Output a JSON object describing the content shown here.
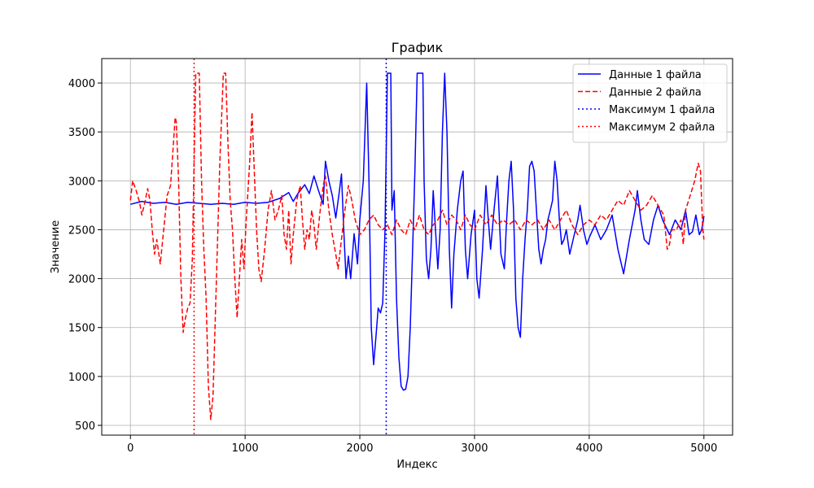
{
  "chart_data": {
    "type": "line",
    "title": "График",
    "xlabel": "Индекс",
    "ylabel": "Значение",
    "xlim": [
      -250,
      5250
    ],
    "ylim": [
      400,
      4250
    ],
    "xticks": [
      0,
      1000,
      2000,
      3000,
      4000,
      5000
    ],
    "yticks": [
      500,
      1000,
      1500,
      2000,
      2500,
      3000,
      3500,
      4000
    ],
    "grid": true,
    "legend_position": "top-right",
    "series": [
      {
        "name": "Данные 1 файла",
        "color": "#0000ff",
        "style": "solid",
        "points": [
          [
            0,
            2760
          ],
          [
            100,
            2790
          ],
          [
            200,
            2770
          ],
          [
            300,
            2780
          ],
          [
            400,
            2760
          ],
          [
            500,
            2780
          ],
          [
            600,
            2770
          ],
          [
            700,
            2760
          ],
          [
            800,
            2770
          ],
          [
            900,
            2760
          ],
          [
            1000,
            2780
          ],
          [
            1100,
            2770
          ],
          [
            1200,
            2780
          ],
          [
            1300,
            2820
          ],
          [
            1380,
            2880
          ],
          [
            1420,
            2790
          ],
          [
            1460,
            2870
          ],
          [
            1520,
            2960
          ],
          [
            1560,
            2870
          ],
          [
            1600,
            3050
          ],
          [
            1640,
            2900
          ],
          [
            1680,
            2760
          ],
          [
            1700,
            3200
          ],
          [
            1730,
            3000
          ],
          [
            1760,
            2850
          ],
          [
            1790,
            2620
          ],
          [
            1820,
            2880
          ],
          [
            1840,
            3070
          ],
          [
            1860,
            2500
          ],
          [
            1880,
            2000
          ],
          [
            1900,
            2230
          ],
          [
            1920,
            2000
          ],
          [
            1950,
            2460
          ],
          [
            1980,
            2150
          ],
          [
            2000,
            2600
          ],
          [
            2030,
            3000
          ],
          [
            2060,
            4000
          ],
          [
            2080,
            3000
          ],
          [
            2100,
            1500
          ],
          [
            2120,
            1120
          ],
          [
            2140,
            1400
          ],
          [
            2160,
            1700
          ],
          [
            2180,
            1650
          ],
          [
            2200,
            1750
          ],
          [
            2220,
            2500
          ],
          [
            2240,
            4100
          ],
          [
            2270,
            4100
          ],
          [
            2280,
            2700
          ],
          [
            2300,
            2900
          ],
          [
            2320,
            1800
          ],
          [
            2340,
            1200
          ],
          [
            2360,
            900
          ],
          [
            2380,
            860
          ],
          [
            2400,
            870
          ],
          [
            2420,
            1000
          ],
          [
            2440,
            1500
          ],
          [
            2460,
            2300
          ],
          [
            2480,
            3100
          ],
          [
            2500,
            4100
          ],
          [
            2550,
            4100
          ],
          [
            2560,
            3000
          ],
          [
            2580,
            2200
          ],
          [
            2600,
            2000
          ],
          [
            2620,
            2300
          ],
          [
            2640,
            2900
          ],
          [
            2660,
            2500
          ],
          [
            2680,
            2100
          ],
          [
            2700,
            2500
          ],
          [
            2720,
            3500
          ],
          [
            2740,
            4100
          ],
          [
            2760,
            3500
          ],
          [
            2780,
            2300
          ],
          [
            2800,
            1700
          ],
          [
            2820,
            2250
          ],
          [
            2850,
            2700
          ],
          [
            2880,
            3000
          ],
          [
            2900,
            3100
          ],
          [
            2920,
            2300
          ],
          [
            2940,
            2000
          ],
          [
            2970,
            2450
          ],
          [
            3000,
            2700
          ],
          [
            3020,
            2000
          ],
          [
            3040,
            1800
          ],
          [
            3070,
            2300
          ],
          [
            3100,
            2950
          ],
          [
            3120,
            2600
          ],
          [
            3140,
            2300
          ],
          [
            3170,
            2700
          ],
          [
            3200,
            3050
          ],
          [
            3230,
            2250
          ],
          [
            3260,
            2100
          ],
          [
            3280,
            2600
          ],
          [
            3300,
            3000
          ],
          [
            3320,
            3200
          ],
          [
            3340,
            2700
          ],
          [
            3360,
            1800
          ],
          [
            3380,
            1500
          ],
          [
            3400,
            1400
          ],
          [
            3420,
            2000
          ],
          [
            3440,
            2400
          ],
          [
            3460,
            2700
          ],
          [
            3480,
            3150
          ],
          [
            3500,
            3200
          ],
          [
            3520,
            3100
          ],
          [
            3540,
            2700
          ],
          [
            3560,
            2300
          ],
          [
            3580,
            2150
          ],
          [
            3600,
            2300
          ],
          [
            3620,
            2400
          ],
          [
            3640,
            2600
          ],
          [
            3660,
            2700
          ],
          [
            3680,
            2800
          ],
          [
            3700,
            3200
          ],
          [
            3720,
            3000
          ],
          [
            3740,
            2600
          ],
          [
            3760,
            2350
          ],
          [
            3780,
            2400
          ],
          [
            3800,
            2500
          ],
          [
            3830,
            2250
          ],
          [
            3860,
            2400
          ],
          [
            3900,
            2600
          ],
          [
            3920,
            2750
          ],
          [
            3950,
            2500
          ],
          [
            3980,
            2350
          ],
          [
            4000,
            2420
          ],
          [
            4050,
            2550
          ],
          [
            4100,
            2400
          ],
          [
            4150,
            2500
          ],
          [
            4200,
            2650
          ],
          [
            4250,
            2300
          ],
          [
            4300,
            2050
          ],
          [
            4350,
            2400
          ],
          [
            4400,
            2700
          ],
          [
            4420,
            2900
          ],
          [
            4450,
            2600
          ],
          [
            4480,
            2400
          ],
          [
            4520,
            2350
          ],
          [
            4560,
            2600
          ],
          [
            4600,
            2750
          ],
          [
            4640,
            2600
          ],
          [
            4680,
            2500
          ],
          [
            4700,
            2450
          ],
          [
            4750,
            2600
          ],
          [
            4800,
            2500
          ],
          [
            4840,
            2700
          ],
          [
            4870,
            2450
          ],
          [
            4900,
            2480
          ],
          [
            4930,
            2650
          ],
          [
            4960,
            2450
          ],
          [
            4980,
            2500
          ],
          [
            5000,
            2640
          ]
        ]
      },
      {
        "name": "Данные 2 файла",
        "color": "#ff0000",
        "style": "dashed",
        "points": [
          [
            0,
            2800
          ],
          [
            20,
            3000
          ],
          [
            50,
            2900
          ],
          [
            80,
            2780
          ],
          [
            100,
            2650
          ],
          [
            130,
            2800
          ],
          [
            150,
            2920
          ],
          [
            170,
            2800
          ],
          [
            190,
            2500
          ],
          [
            210,
            2250
          ],
          [
            230,
            2400
          ],
          [
            260,
            2150
          ],
          [
            290,
            2500
          ],
          [
            320,
            2850
          ],
          [
            350,
            2950
          ],
          [
            370,
            3300
          ],
          [
            390,
            3650
          ],
          [
            400,
            3600
          ],
          [
            420,
            3000
          ],
          [
            440,
            2000
          ],
          [
            460,
            1450
          ],
          [
            480,
            1600
          ],
          [
            500,
            1700
          ],
          [
            520,
            1750
          ],
          [
            540,
            2200
          ],
          [
            560,
            3500
          ],
          [
            570,
            4100
          ],
          [
            600,
            4100
          ],
          [
            620,
            3000
          ],
          [
            640,
            2300
          ],
          [
            660,
            1800
          ],
          [
            680,
            900
          ],
          [
            700,
            560
          ],
          [
            720,
            800
          ],
          [
            740,
            1600
          ],
          [
            760,
            2400
          ],
          [
            780,
            3200
          ],
          [
            810,
            4100
          ],
          [
            830,
            4100
          ],
          [
            850,
            3400
          ],
          [
            870,
            2800
          ],
          [
            890,
            2500
          ],
          [
            910,
            2000
          ],
          [
            930,
            1600
          ],
          [
            950,
            2000
          ],
          [
            970,
            2400
          ],
          [
            990,
            2100
          ],
          [
            1010,
            2600
          ],
          [
            1040,
            3200
          ],
          [
            1060,
            3700
          ],
          [
            1080,
            3100
          ],
          [
            1100,
            2500
          ],
          [
            1120,
            2100
          ],
          [
            1140,
            1970
          ],
          [
            1170,
            2300
          ],
          [
            1200,
            2700
          ],
          [
            1230,
            2900
          ],
          [
            1260,
            2600
          ],
          [
            1290,
            2700
          ],
          [
            1320,
            2850
          ],
          [
            1340,
            2450
          ],
          [
            1360,
            2300
          ],
          [
            1380,
            2700
          ],
          [
            1400,
            2150
          ],
          [
            1420,
            2450
          ],
          [
            1450,
            2800
          ],
          [
            1480,
            2950
          ],
          [
            1500,
            2600
          ],
          [
            1520,
            2300
          ],
          [
            1540,
            2500
          ],
          [
            1560,
            2400
          ],
          [
            1580,
            2700
          ],
          [
            1600,
            2550
          ],
          [
            1620,
            2300
          ],
          [
            1650,
            2650
          ],
          [
            1680,
            2950
          ],
          [
            1700,
            3050
          ],
          [
            1730,
            2700
          ],
          [
            1760,
            2450
          ],
          [
            1790,
            2250
          ],
          [
            1810,
            2100
          ],
          [
            1840,
            2400
          ],
          [
            1870,
            2700
          ],
          [
            1900,
            2950
          ],
          [
            1930,
            2800
          ],
          [
            1960,
            2600
          ],
          [
            2000,
            2450
          ],
          [
            2040,
            2500
          ],
          [
            2080,
            2600
          ],
          [
            2120,
            2650
          ],
          [
            2160,
            2550
          ],
          [
            2200,
            2500
          ],
          [
            2240,
            2550
          ],
          [
            2280,
            2450
          ],
          [
            2320,
            2600
          ],
          [
            2360,
            2500
          ],
          [
            2400,
            2450
          ],
          [
            2440,
            2600
          ],
          [
            2480,
            2500
          ],
          [
            2520,
            2650
          ],
          [
            2560,
            2500
          ],
          [
            2600,
            2450
          ],
          [
            2640,
            2550
          ],
          [
            2680,
            2600
          ],
          [
            2720,
            2700
          ],
          [
            2760,
            2550
          ],
          [
            2800,
            2650
          ],
          [
            2840,
            2600
          ],
          [
            2880,
            2500
          ],
          [
            2920,
            2650
          ],
          [
            2960,
            2550
          ],
          [
            3000,
            2500
          ],
          [
            3050,
            2650
          ],
          [
            3100,
            2550
          ],
          [
            3150,
            2650
          ],
          [
            3200,
            2550
          ],
          [
            3250,
            2600
          ],
          [
            3300,
            2550
          ],
          [
            3350,
            2600
          ],
          [
            3400,
            2500
          ],
          [
            3450,
            2600
          ],
          [
            3500,
            2550
          ],
          [
            3550,
            2600
          ],
          [
            3600,
            2500
          ],
          [
            3650,
            2600
          ],
          [
            3700,
            2500
          ],
          [
            3750,
            2600
          ],
          [
            3800,
            2700
          ],
          [
            3850,
            2550
          ],
          [
            3900,
            2450
          ],
          [
            3950,
            2550
          ],
          [
            4000,
            2600
          ],
          [
            4050,
            2550
          ],
          [
            4100,
            2650
          ],
          [
            4150,
            2600
          ],
          [
            4200,
            2700
          ],
          [
            4250,
            2800
          ],
          [
            4300,
            2750
          ],
          [
            4350,
            2900
          ],
          [
            4400,
            2800
          ],
          [
            4450,
            2700
          ],
          [
            4500,
            2750
          ],
          [
            4550,
            2850
          ],
          [
            4600,
            2750
          ],
          [
            4650,
            2650
          ],
          [
            4680,
            2300
          ],
          [
            4700,
            2350
          ],
          [
            4720,
            2500
          ],
          [
            4760,
            2500
          ],
          [
            4800,
            2600
          ],
          [
            4820,
            2350
          ],
          [
            4840,
            2700
          ],
          [
            4880,
            2850
          ],
          [
            4920,
            3000
          ],
          [
            4950,
            3180
          ],
          [
            4970,
            3100
          ],
          [
            4990,
            2500
          ],
          [
            5000,
            2400
          ]
        ]
      },
      {
        "name": "Максимум 1 файла",
        "color": "#0000ff",
        "style": "dotted",
        "vline_x": 2230
      },
      {
        "name": "Максимум 2 файла",
        "color": "#ff0000",
        "style": "dotted",
        "vline_x": 555
      }
    ]
  }
}
